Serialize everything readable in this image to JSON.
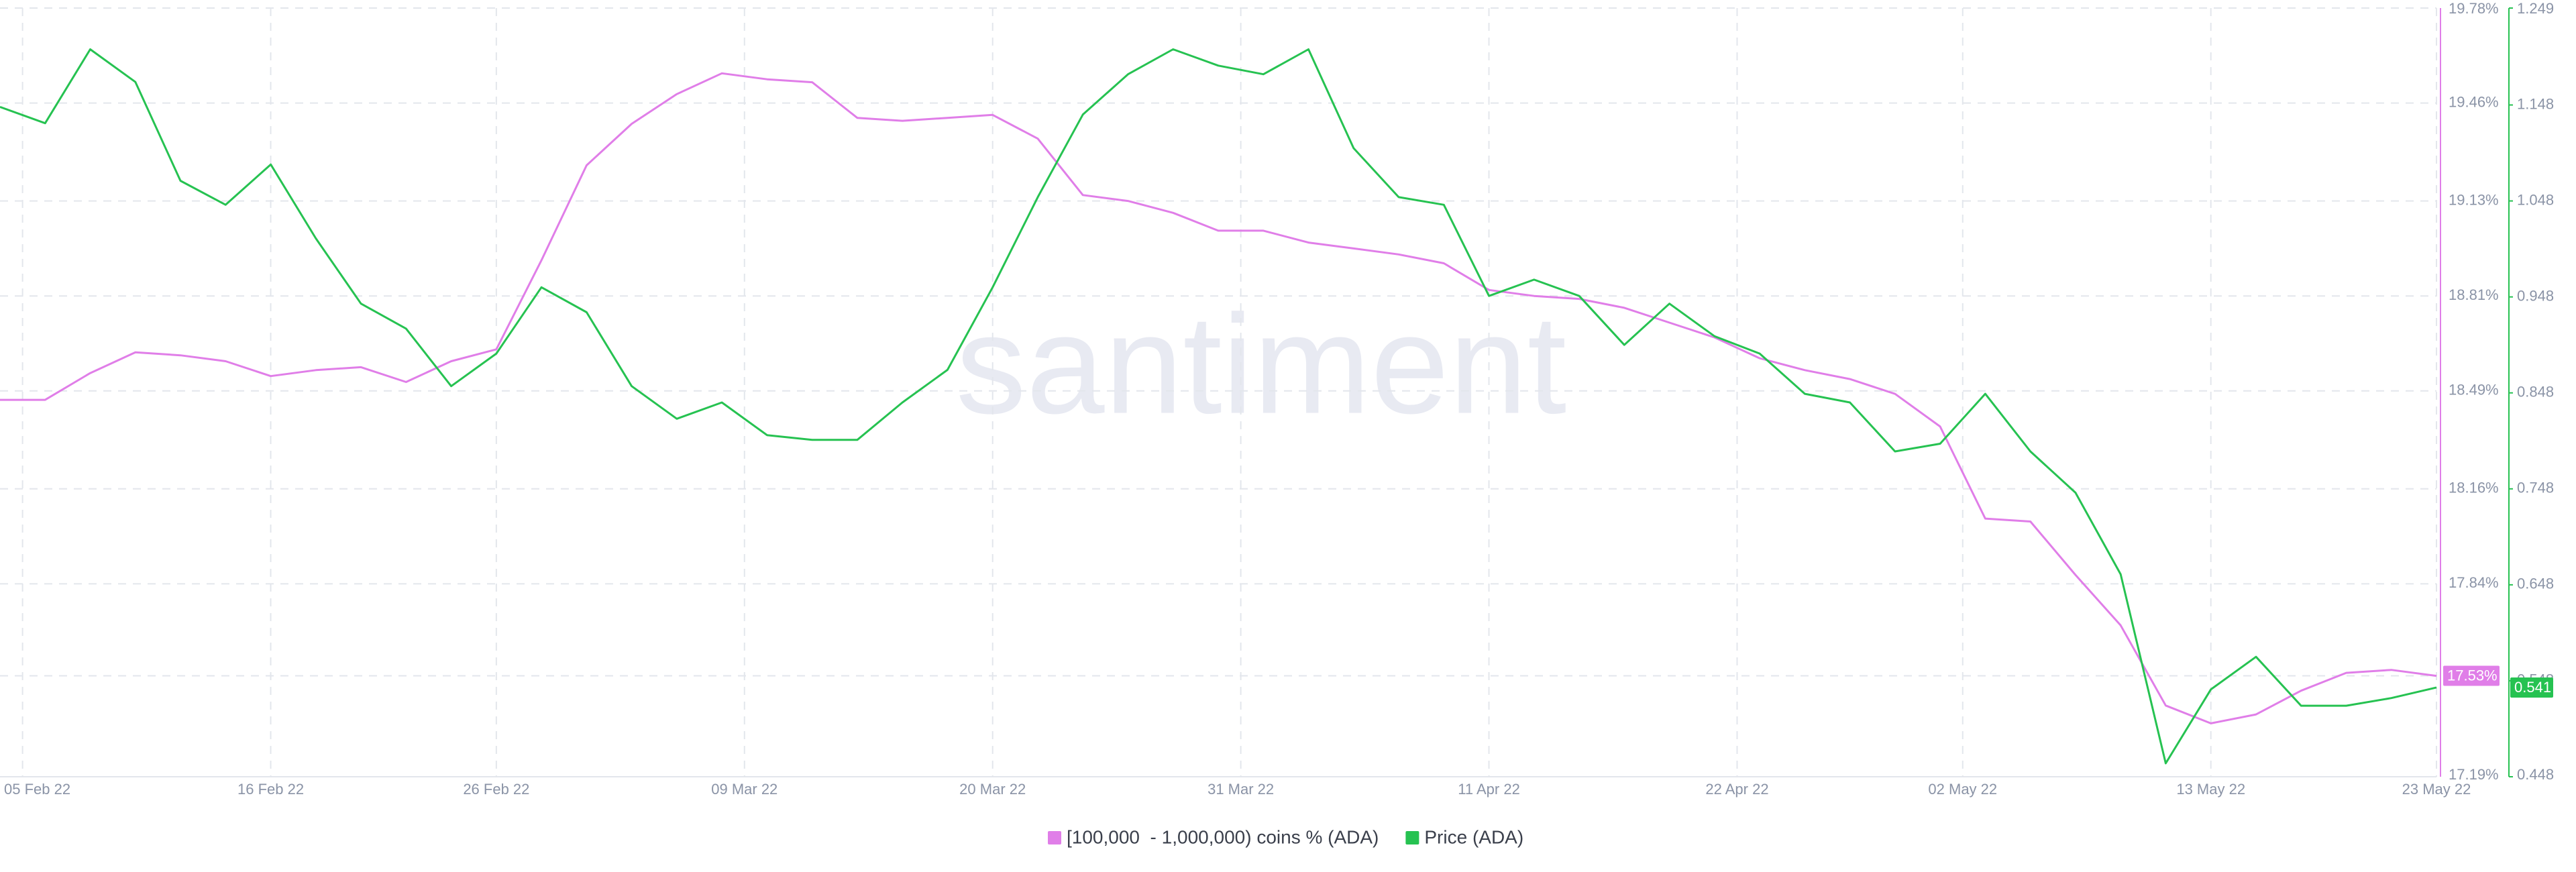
{
  "chart_data": {
    "type": "line",
    "watermark": "santiment",
    "xlim": [
      "2022-02-04",
      "2022-05-23"
    ],
    "xticks": [
      {
        "value": "2022-02-05",
        "label": "05 Feb 22"
      },
      {
        "value": "2022-02-16",
        "label": "16 Feb 22"
      },
      {
        "value": "2022-02-26",
        "label": "26 Feb 22"
      },
      {
        "value": "2022-03-09",
        "label": "09 Mar 22"
      },
      {
        "value": "2022-03-20",
        "label": "20 Mar 22"
      },
      {
        "value": "2022-03-31",
        "label": "31 Mar 22"
      },
      {
        "value": "2022-04-11",
        "label": "11 Apr 22"
      },
      {
        "value": "2022-04-22",
        "label": "22 Apr 22"
      },
      {
        "value": "2022-05-02",
        "label": "02 May 22"
      },
      {
        "value": "2022-05-13",
        "label": "13 May 22"
      },
      {
        "value": "2022-05-23",
        "label": "23 May 22"
      }
    ],
    "ylim": [
      17.19,
      19.78
    ],
    "yticks": [
      {
        "value": 19.78,
        "label": "19.78%"
      },
      {
        "value": 19.46,
        "label": "19.46%"
      },
      {
        "value": 19.13,
        "label": "19.13%"
      },
      {
        "value": 18.81,
        "label": "18.81%"
      },
      {
        "value": 18.49,
        "label": "18.49%"
      },
      {
        "value": 18.16,
        "label": "18.16%"
      },
      {
        "value": 17.84,
        "label": "17.84%"
      },
      {
        "value": 17.53,
        "label": "17.53%"
      },
      {
        "value": 17.19,
        "label": "17.19%"
      }
    ],
    "y2lim": [
      0.448,
      1.249
    ],
    "y2ticks": [
      1.249,
      1.148,
      1.048,
      0.948,
      0.848,
      0.748,
      0.648,
      0.548,
      0.448
    ],
    "grid": true,
    "x": [
      "2022-02-04",
      "2022-02-06",
      "2022-02-08",
      "2022-02-10",
      "2022-02-12",
      "2022-02-14",
      "2022-02-16",
      "2022-02-18",
      "2022-02-20",
      "2022-02-22",
      "2022-02-24",
      "2022-02-26",
      "2022-02-28",
      "2022-03-02",
      "2022-03-04",
      "2022-03-06",
      "2022-03-08",
      "2022-03-10",
      "2022-03-12",
      "2022-03-14",
      "2022-03-16",
      "2022-03-18",
      "2022-03-20",
      "2022-03-22",
      "2022-03-24",
      "2022-03-26",
      "2022-03-28",
      "2022-03-30",
      "2022-04-01",
      "2022-04-03",
      "2022-04-05",
      "2022-04-07",
      "2022-04-09",
      "2022-04-11",
      "2022-04-13",
      "2022-04-15",
      "2022-04-17",
      "2022-04-19",
      "2022-04-21",
      "2022-04-23",
      "2022-04-25",
      "2022-04-27",
      "2022-04-29",
      "2022-05-01",
      "2022-05-03",
      "2022-05-05",
      "2022-05-07",
      "2022-05-09",
      "2022-05-11",
      "2022-05-13",
      "2022-05-15",
      "2022-05-17",
      "2022-05-19",
      "2022-05-21",
      "2022-05-23"
    ],
    "series": [
      {
        "name": "[100,000  - 1,000,000) coins % (ADA)",
        "color": "#e07ee8",
        "axis": "y",
        "values": [
          18.46,
          18.46,
          18.55,
          18.62,
          18.61,
          18.59,
          18.54,
          18.56,
          18.57,
          18.52,
          18.59,
          18.63,
          18.93,
          19.25,
          19.39,
          19.49,
          19.56,
          19.54,
          19.53,
          19.41,
          19.4,
          19.41,
          19.42,
          19.34,
          19.15,
          19.13,
          19.09,
          19.03,
          19.03,
          18.99,
          18.97,
          18.95,
          18.92,
          18.83,
          18.81,
          18.8,
          18.77,
          18.72,
          18.67,
          18.6,
          18.56,
          18.53,
          18.48,
          18.37,
          18.06,
          18.05,
          17.87,
          17.7,
          17.43,
          17.37,
          17.4,
          17.48,
          17.54,
          17.55,
          17.53
        ],
        "end_label": "17.53%"
      },
      {
        "name": "Price (ADA)",
        "color": "#26c251",
        "axis": "y2",
        "values": [
          1.146,
          1.129,
          1.206,
          1.172,
          1.069,
          1.044,
          1.086,
          1.009,
          0.941,
          0.915,
          0.855,
          0.889,
          0.958,
          0.932,
          0.855,
          0.821,
          0.838,
          0.804,
          0.799,
          0.799,
          0.838,
          0.872,
          0.958,
          1.052,
          1.138,
          1.18,
          1.206,
          1.189,
          1.18,
          1.206,
          1.103,
          1.052,
          1.044,
          0.949,
          0.966,
          0.949,
          0.898,
          0.941,
          0.907,
          0.889,
          0.847,
          0.838,
          0.787,
          0.795,
          0.847,
          0.787,
          0.744,
          0.659,
          0.462,
          0.539,
          0.573,
          0.522,
          0.522,
          0.53,
          0.541
        ],
        "end_label": "0.541"
      }
    ]
  }
}
